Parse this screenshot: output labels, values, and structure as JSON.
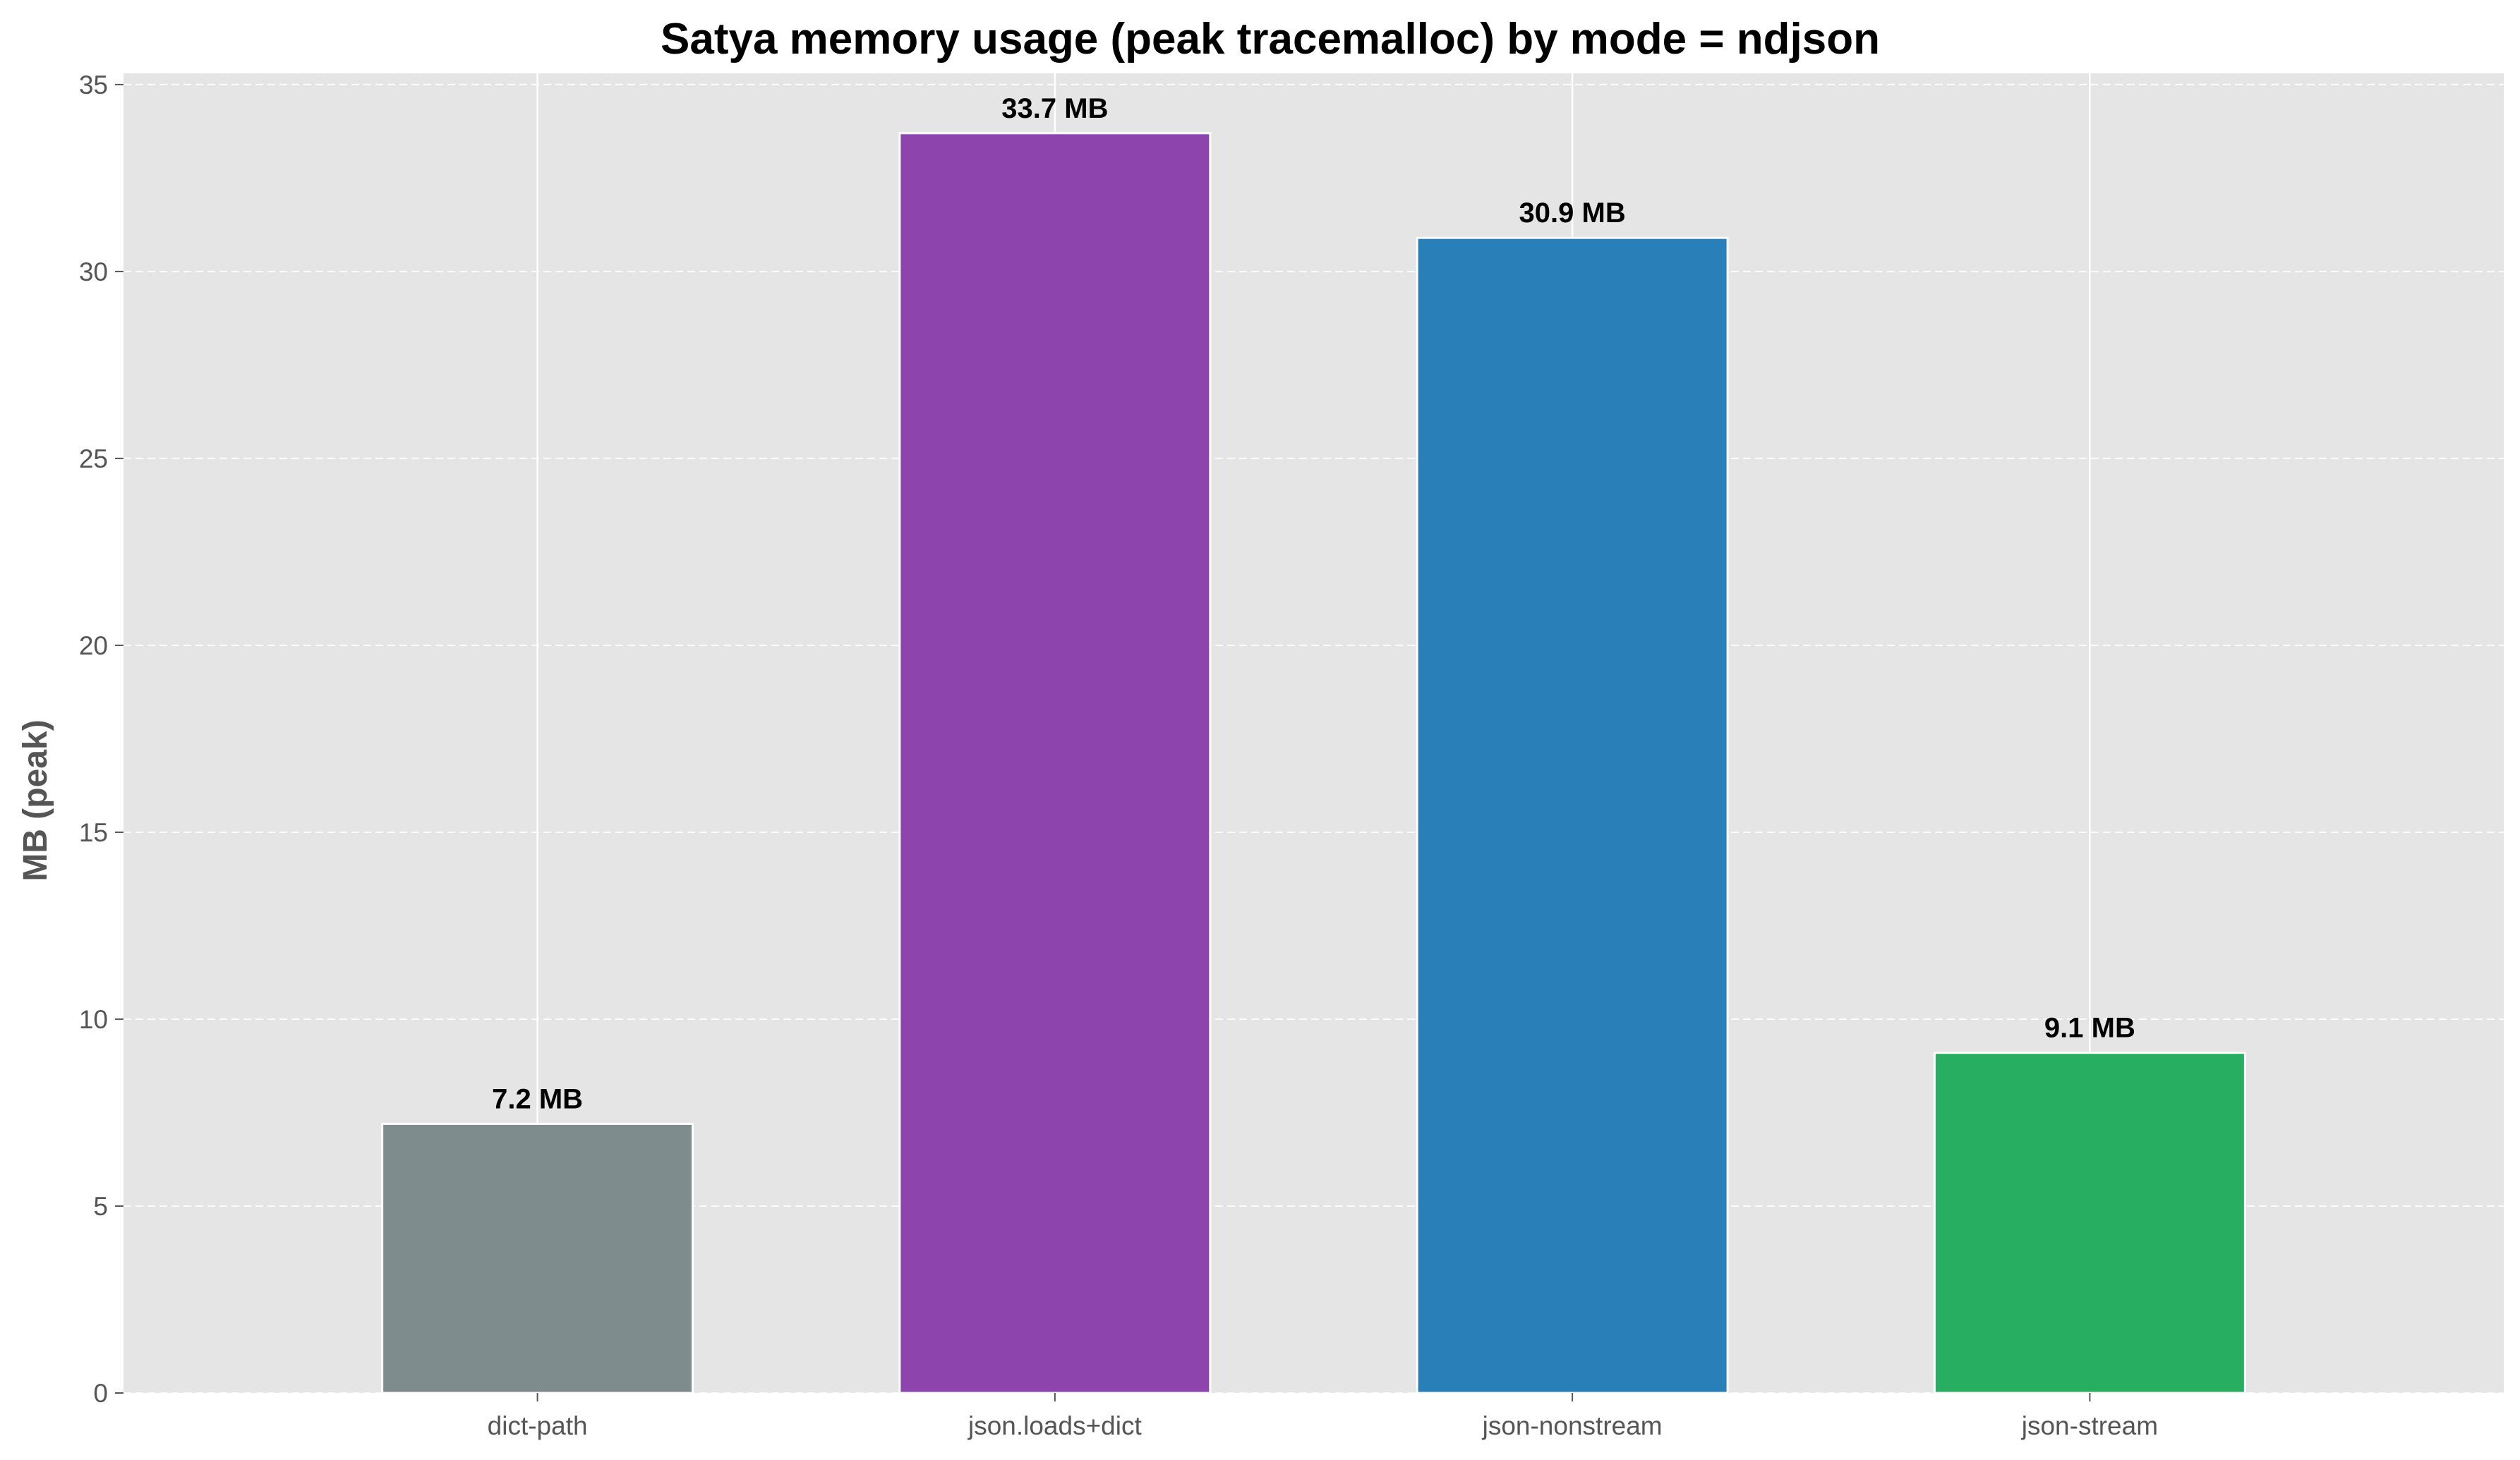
{
  "chart_data": {
    "type": "bar",
    "title": "Satya memory usage (peak tracemalloc) by mode = ndjson",
    "xlabel": "",
    "ylabel": "MB (peak)",
    "categories": [
      "dict-path",
      "json.loads+dict",
      "json-nonstream",
      "json-stream"
    ],
    "values": [
      7.2,
      33.7,
      30.9,
      9.1
    ],
    "bar_labels": [
      "7.2 MB",
      "33.7 MB",
      "30.9 MB",
      "9.1 MB"
    ],
    "colors": [
      "#7f8c8d",
      "#8e44ad",
      "#2980b9",
      "#27ae60"
    ],
    "ylim": [
      0,
      35.3
    ],
    "yticks": [
      0,
      5,
      10,
      15,
      20,
      25,
      30,
      35
    ],
    "grid": true,
    "grid_style": "dashed horizontal, solid vertical at categories",
    "background_color": "#e5e5e5"
  }
}
